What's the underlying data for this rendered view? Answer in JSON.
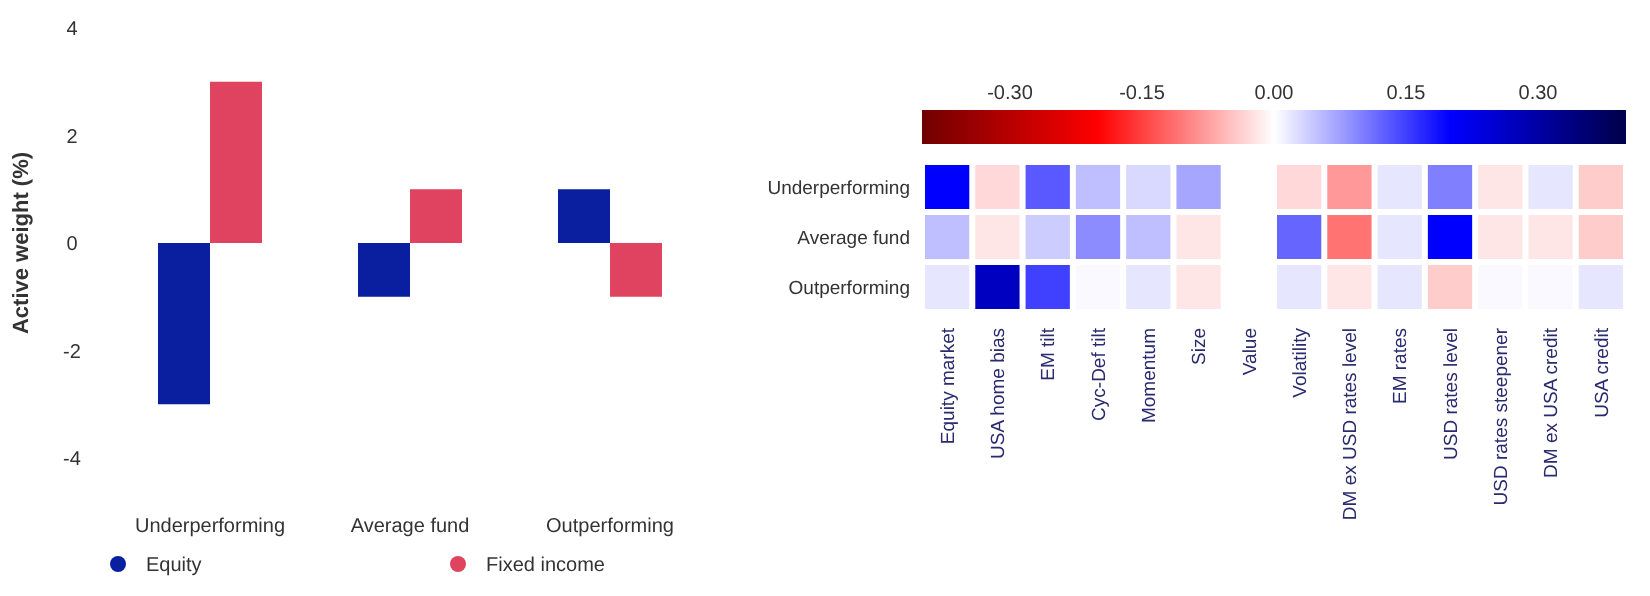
{
  "chart_data": [
    {
      "type": "bar",
      "ylabel": "Active weight (%)",
      "categories": [
        "Underperforming",
        "Average fund",
        "Outperforming"
      ],
      "ylim": [
        -4,
        4
      ],
      "yticks": [
        -4,
        -2,
        0,
        2,
        4
      ],
      "legend": "bottom",
      "grid": false,
      "series": [
        {
          "name": "Equity",
          "color": "#0a1fa0",
          "values": [
            -3,
            -1,
            1
          ]
        },
        {
          "name": "Fixed income",
          "color": "#e0435f",
          "values": [
            3,
            1,
            -1
          ]
        }
      ]
    },
    {
      "type": "heatmap",
      "categories": [
        "Equity market",
        "USA home bias",
        "EM tilt",
        "Cyc-Def tilt",
        "Momentum",
        "Size",
        "Value",
        "Volatility",
        "DM ex USD rates level",
        "EM rates",
        "USD rates level",
        "USD rates steepener",
        "DM ex USA credit",
        "USA credit"
      ],
      "y_categories": [
        "Underperforming",
        "Average fund",
        "Outperforming"
      ],
      "clim": [
        -0.4,
        0.4
      ],
      "cticks": [
        {
          "value": -0.3,
          "label": "-0.30"
        },
        {
          "value": -0.15,
          "label": "-0.15"
        },
        {
          "value": 0,
          "label": "0.00"
        },
        {
          "value": 0.15,
          "label": "0.15"
        },
        {
          "value": 0.3,
          "label": "0.30"
        }
      ],
      "cells": [
        [
          0.2,
          -0.03,
          0.13,
          0.05,
          0.03,
          0.07,
          null,
          -0.03,
          -0.08,
          0.02,
          0.1,
          -0.02,
          0.02,
          -0.04
        ],
        [
          0.05,
          -0.02,
          0.04,
          0.09,
          0.05,
          -0.02,
          null,
          0.12,
          -0.11,
          0.02,
          0.2,
          -0.02,
          -0.02,
          -0.04
        ],
        [
          0.02,
          0.27,
          0.15,
          0.005,
          0.02,
          -0.02,
          null,
          0.02,
          -0.02,
          0.02,
          -0.04,
          0.005,
          0.005,
          0.02
        ]
      ]
    }
  ]
}
